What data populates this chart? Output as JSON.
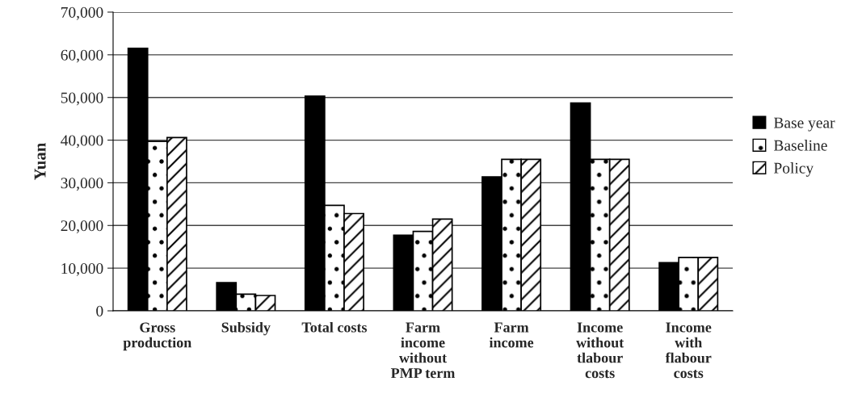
{
  "chart_data": {
    "type": "bar",
    "ylabel": "Yuan",
    "categories": [
      "Gross\nproduction",
      "Subsidy",
      "Total costs",
      "Farm\nincome\nwithout\nPMP term",
      "Farm\nincome",
      "Income\nwithout\ntlabour\ncosts",
      "Income\nwith\nflabour\ncosts"
    ],
    "series": [
      {
        "name": "Base year",
        "color": "#000000",
        "values": [
          61500,
          6600,
          50300,
          17700,
          31400,
          48700,
          11300
        ]
      },
      {
        "name": "Baseline",
        "color": "#ffffff",
        "values": [
          39700,
          3900,
          24700,
          18600,
          35500,
          35500,
          12500
        ]
      },
      {
        "name": "Policy",
        "color": "#ffffff",
        "values": [
          40600,
          3600,
          22800,
          21500,
          35500,
          35500,
          12500
        ]
      }
    ],
    "ylim": [
      0,
      70000
    ],
    "yticks": [
      0,
      {
        "value": 10000,
        "label": "10,000"
      },
      {
        "value": 20000,
        "label": "20,000"
      },
      {
        "value": 30000,
        "label": "30,000"
      },
      {
        "value": 40000,
        "label": "40,000"
      },
      {
        "value": 50000,
        "label": "50,000"
      },
      {
        "value": 60000,
        "label": "60,000"
      },
      {
        "value": 70000,
        "label": "70,000"
      }
    ],
    "grid": "y",
    "legend": "right"
  }
}
